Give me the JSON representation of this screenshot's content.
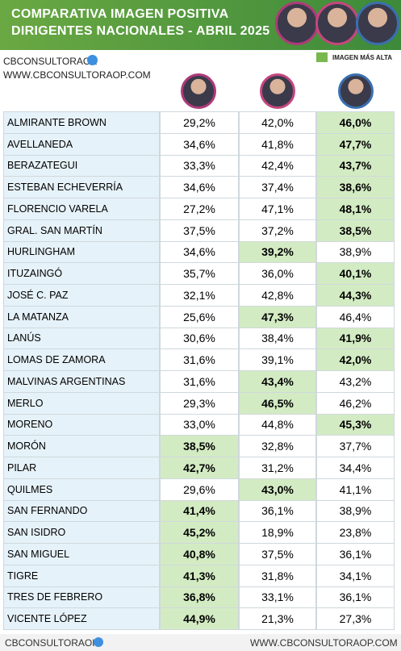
{
  "header": {
    "title": [
      "COMPARATIVA IMAGEN POSITIVA",
      "DIRIGENTES NACIONALES - ABRIL  2025"
    ]
  },
  "brand": "CBCONSULTORAOK",
  "website": "WWW.CBCONSULTORAOP.COM",
  "legend": "IMAGEN MÁS ALTA",
  "footer": {
    "brand": "CBCONSULTORAOK",
    "website": "WWW.CBCONSULTORAOP.COM"
  },
  "table": {
    "rows": [
      [
        "ALMIRANTE BROWN",
        "29,2%",
        "42,0%",
        "46,0%"
      ],
      [
        "AVELLANEDA",
        "34,6%",
        "41,8%",
        "47,7%"
      ],
      [
        "BERAZATEGUI",
        "33,3%",
        "42,4%",
        "43,7%"
      ],
      [
        "ESTEBAN ECHEVERRÍA",
        "34,6%",
        "37,4%",
        "38,6%"
      ],
      [
        "FLORENCIO VARELA",
        "27,2%",
        "47,1%",
        "48,1%"
      ],
      [
        "GRAL. SAN MARTÍN",
        "37,5%",
        "37,2%",
        "38,5%"
      ],
      [
        "HURLINGHAM",
        "34,6%",
        "39,2%",
        "38,9%"
      ],
      [
        "ITUZAINGÓ",
        "35,7%",
        "36,0%",
        "40,1%"
      ],
      [
        "JOSÉ C. PAZ",
        "32,1%",
        "42,8%",
        "44,3%"
      ],
      [
        "LA MATANZA",
        "25,6%",
        "47,3%",
        "46,4%"
      ],
      [
        "LANÚS",
        "30,6%",
        "38,4%",
        "41,9%"
      ],
      [
        "LOMAS DE ZAMORA",
        "31,6%",
        "39,1%",
        "42,0%"
      ],
      [
        "MALVINAS ARGENTINAS",
        "31,6%",
        "43,4%",
        "43,2%"
      ],
      [
        "MERLO",
        "29,3%",
        "46,5%",
        "46,2%"
      ],
      [
        "MORENO",
        "33,0%",
        "44,8%",
        "45,3%"
      ],
      [
        "MORÓN",
        "38,5%",
        "32,8%",
        "37,7%"
      ],
      [
        "PILAR",
        "42,7%",
        "31,2%",
        "34,4%"
      ],
      [
        "QUILMES",
        "29,6%",
        "43,0%",
        "41,1%"
      ],
      [
        "SAN FERNANDO",
        "41,4%",
        "36,1%",
        "38,9%"
      ],
      [
        "SAN ISIDRO",
        "45,2%",
        "18,9%",
        "23,8%"
      ],
      [
        "SAN MIGUEL",
        "40,8%",
        "37,5%",
        "36,1%"
      ],
      [
        "TIGRE",
        "41,3%",
        "31,8%",
        "34,1%"
      ],
      [
        "TRES DE FEBRERO",
        "36,8%",
        "33,1%",
        "36,1%"
      ],
      [
        "VICENTE LÓPEZ",
        "44,9%",
        "21,3%",
        "27,3%"
      ]
    ],
    "highlight": [
      3,
      3,
      3,
      3,
      3,
      3,
      2,
      3,
      3,
      2,
      3,
      3,
      2,
      2,
      3,
      1,
      1,
      2,
      1,
      1,
      1,
      1,
      1,
      1
    ],
    "highlight_color": "#d3ebc3",
    "name_color": "#e6f2f9"
  }
}
